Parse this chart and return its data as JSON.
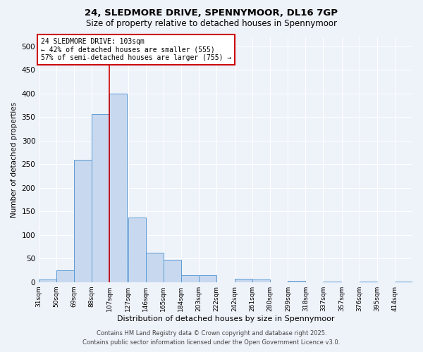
{
  "title1": "24, SLEDMORE DRIVE, SPENNYMOOR, DL16 7GP",
  "title2": "Size of property relative to detached houses in Spennymoor",
  "xlabel": "Distribution of detached houses by size in Spennymoor",
  "ylabel": "Number of detached properties",
  "bar_color": "#c8d9ef",
  "bar_edge_color": "#5b9bd5",
  "background_color": "#eef2f9",
  "grid_color": "#ffffff",
  "bin_labels": [
    "31sqm",
    "50sqm",
    "69sqm",
    "88sqm",
    "107sqm",
    "127sqm",
    "146sqm",
    "165sqm",
    "184sqm",
    "203sqm",
    "222sqm",
    "242sqm",
    "261sqm",
    "280sqm",
    "299sqm",
    "318sqm",
    "337sqm",
    "357sqm",
    "376sqm",
    "395sqm",
    "414sqm"
  ],
  "bar_values": [
    5,
    25,
    260,
    357,
    400,
    137,
    62,
    48,
    15,
    14,
    0,
    7,
    5,
    0,
    2,
    0,
    1,
    0,
    1,
    0,
    1
  ],
  "bin_edges": [
    31,
    50,
    69,
    88,
    107,
    127,
    146,
    165,
    184,
    203,
    222,
    242,
    261,
    280,
    299,
    318,
    337,
    357,
    376,
    395,
    414
  ],
  "bin_width": 19,
  "red_line_x": 107,
  "ylim": [
    0,
    520
  ],
  "yticks": [
    0,
    50,
    100,
    150,
    200,
    250,
    300,
    350,
    400,
    450,
    500
  ],
  "annotation_line1": "24 SLEDMORE DRIVE: 103sqm",
  "annotation_line2": "← 42% of detached houses are smaller (555)",
  "annotation_line3": "57% of semi-detached houses are larger (755) →",
  "annotation_box_color": "#ffffff",
  "annotation_edge_color": "#cc0000",
  "footer1": "Contains HM Land Registry data © Crown copyright and database right 2025.",
  "footer2": "Contains public sector information licensed under the Open Government Licence v3.0.",
  "title1_fontsize": 9.5,
  "title2_fontsize": 8.5,
  "ylabel_fontsize": 7.5,
  "xlabel_fontsize": 8,
  "ytick_fontsize": 7.5,
  "xtick_fontsize": 6.5,
  "annot_fontsize": 7,
  "footer_fontsize": 6
}
